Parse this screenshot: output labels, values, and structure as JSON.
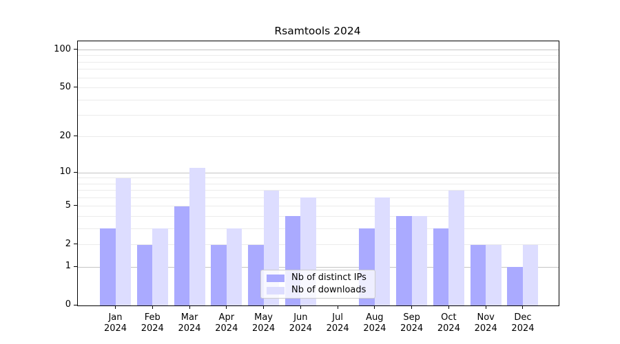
{
  "title": "Rsamtools 2024",
  "chart_data": {
    "type": "bar",
    "title": "Rsamtools 2024",
    "categories": [
      "Jan",
      "Feb",
      "Mar",
      "Apr",
      "May",
      "Jun",
      "Jul",
      "Aug",
      "Sep",
      "Oct",
      "Nov",
      "Dec"
    ],
    "x_year_label": "2024",
    "series": [
      {
        "name": "Nb of distinct IPs",
        "color": "#aaaaff",
        "values": [
          3,
          2,
          5,
          2,
          2,
          4,
          0,
          3,
          4,
          3,
          2,
          1
        ]
      },
      {
        "name": "Nb of downloads",
        "color": "#ddddff",
        "values": [
          9,
          3,
          11,
          3,
          7,
          6,
          0,
          6,
          4,
          7,
          2,
          2
        ]
      }
    ],
    "y_axis": {
      "scale": "log10(1+x)",
      "tick_labels": [
        0,
        1,
        2,
        5,
        10,
        20,
        50,
        100
      ],
      "major_gridlines": [
        1,
        10,
        100
      ],
      "minor_gridlines": [
        2,
        3,
        4,
        5,
        6,
        7,
        8,
        9,
        20,
        30,
        40,
        50,
        60,
        70,
        80,
        90
      ],
      "top_value": 118
    },
    "legend_position": "bottom-center",
    "grid": true
  },
  "colors": {
    "distinct_ips": "#aaaaff",
    "downloads": "#ddddff",
    "major_grid": "#c3c3c3",
    "minor_grid": "#ebebeb",
    "axis": "#000000",
    "legend_border": "#cccccc",
    "background": "#ffffff"
  }
}
